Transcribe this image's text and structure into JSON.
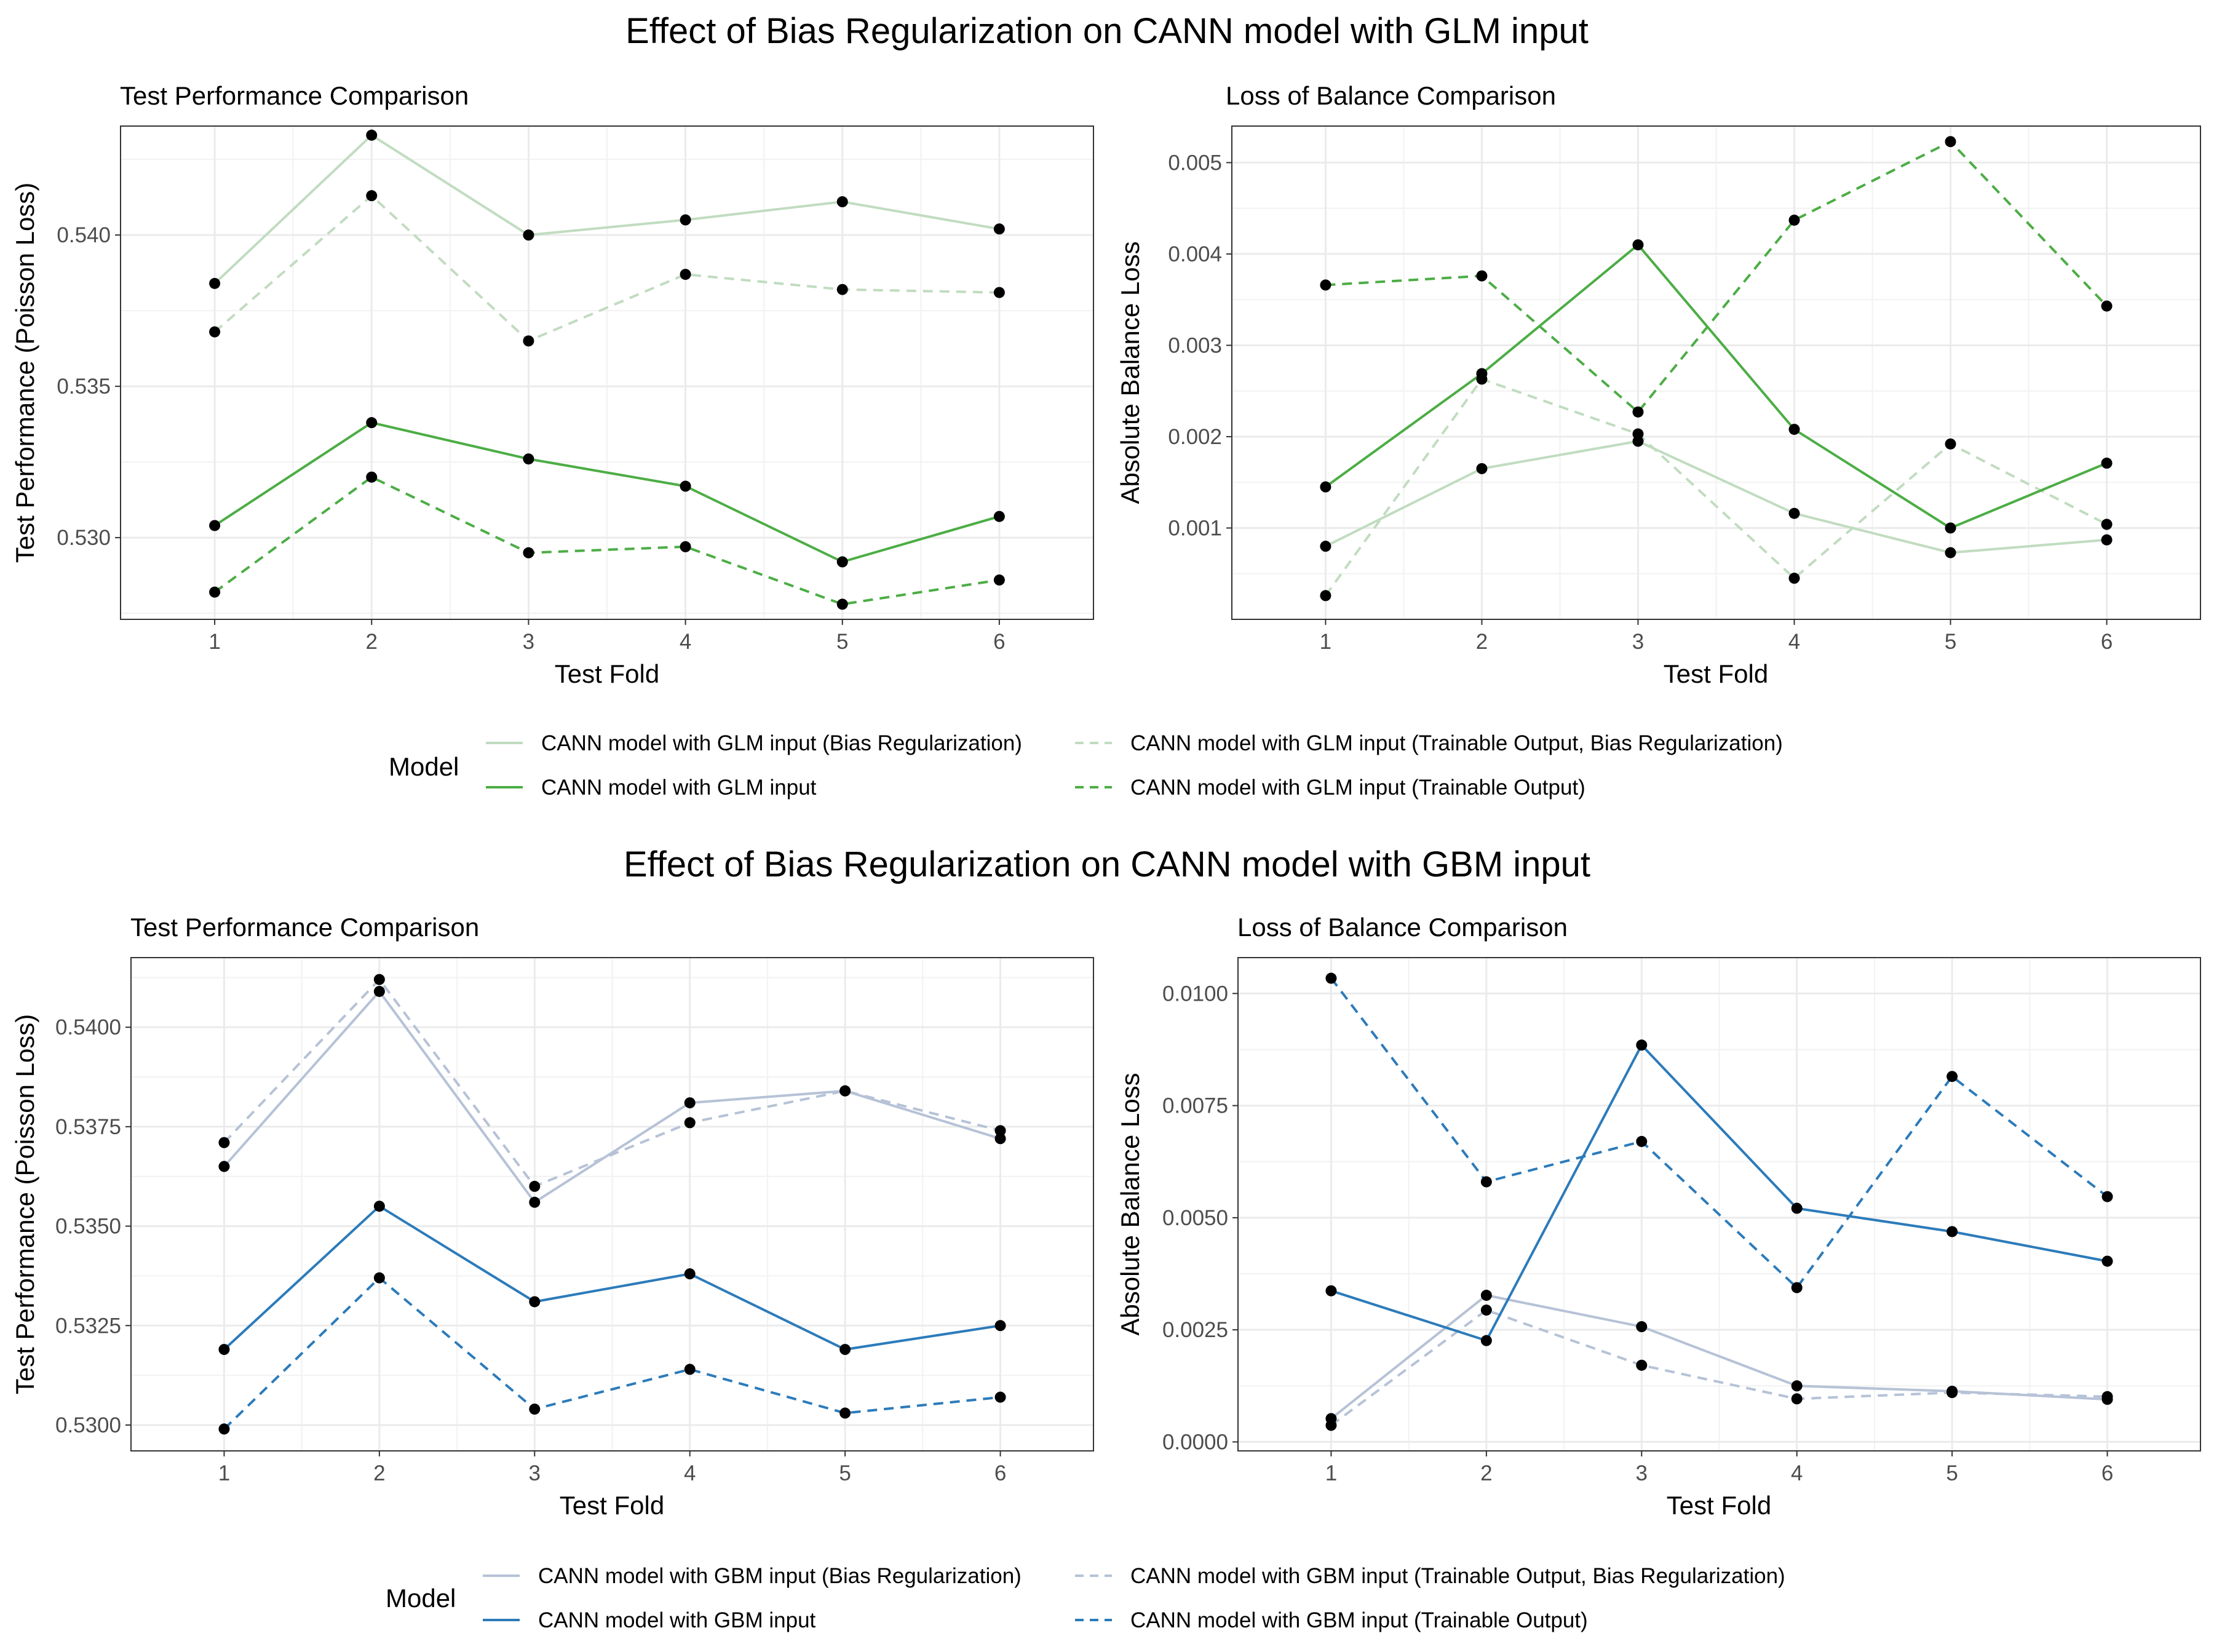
{
  "figure": {
    "top_title": "Effect of Bias Regularization on CANN model with GLM input",
    "bottom_title": "Effect of Bias Regularization on CANN model with GBM input"
  },
  "legends": [
    {
      "title": "Model",
      "items": [
        {
          "label": "CANN model with GLM input (Bias Regularization)",
          "color": "#c1dcc0",
          "dash": "solid"
        },
        {
          "label": "CANN model with GLM input (Trainable Output, Bias Regularization)",
          "color": "#c1dcc0",
          "dash": "dashed"
        },
        {
          "label": "CANN model with GLM input",
          "color": "#4cad45",
          "dash": "solid"
        },
        {
          "label": "CANN model with GLM input (Trainable Output)",
          "color": "#4cad45",
          "dash": "dashed"
        }
      ]
    },
    {
      "title": "Model",
      "items": [
        {
          "label": "CANN model with GBM input (Bias Regularization)",
          "color": "#b6c2d6",
          "dash": "solid"
        },
        {
          "label": "CANN model with GBM input (Trainable Output, Bias Regularization)",
          "color": "#b6c2d6",
          "dash": "dashed"
        },
        {
          "label": "CANN model with GBM input",
          "color": "#2c7bba",
          "dash": "solid"
        },
        {
          "label": "CANN model with GBM input (Trainable Output)",
          "color": "#2c7bba",
          "dash": "dashed"
        }
      ]
    }
  ],
  "chart_data": [
    {
      "type": "line",
      "title": "Test Performance Comparison",
      "xlabel": "Test Fold",
      "ylabel": "Test Performance (Poisson Loss)",
      "x": [
        1,
        2,
        3,
        4,
        5,
        6
      ],
      "xlim": [
        0.4,
        6.6
      ],
      "ylim": [
        0.5273,
        0.5436
      ],
      "yticks": [
        0.53,
        0.535,
        0.54
      ],
      "ytick_labels": [
        "0.530",
        "0.535",
        "0.540"
      ],
      "grid": true,
      "series": [
        {
          "name": "CANN model with GLM input (Bias Regularization)",
          "color": "#c1dcc0",
          "dash": "solid",
          "values": [
            0.5384,
            0.5433,
            0.54,
            0.5405,
            0.5411,
            0.5402
          ]
        },
        {
          "name": "CANN model with GLM input (Trainable Output, Bias Regularization)",
          "color": "#c1dcc0",
          "dash": "dashed",
          "values": [
            0.5368,
            0.5413,
            0.5365,
            0.5387,
            0.5382,
            0.5381
          ]
        },
        {
          "name": "CANN model with GLM input",
          "color": "#4cad45",
          "dash": "solid",
          "values": [
            0.5304,
            0.5338,
            0.5326,
            0.5317,
            0.5292,
            0.5307
          ]
        },
        {
          "name": "CANN model with GLM input (Trainable Output)",
          "color": "#4cad45",
          "dash": "dashed",
          "values": [
            0.5282,
            0.532,
            0.5295,
            0.5297,
            0.5278,
            0.5286
          ]
        }
      ]
    },
    {
      "type": "line",
      "title": "Loss of Balance Comparison",
      "xlabel": "Test Fold",
      "ylabel": "Absolute Balance Loss",
      "x": [
        1,
        2,
        3,
        4,
        5,
        6
      ],
      "xlim": [
        0.4,
        6.6
      ],
      "ylim": [
        0.0,
        0.0054
      ],
      "yticks": [
        0.001,
        0.002,
        0.003,
        0.004,
        0.005
      ],
      "ytick_labels": [
        "0.001",
        "0.002",
        "0.003",
        "0.004",
        "0.005"
      ],
      "grid": true,
      "series": [
        {
          "name": "CANN model with GLM input (Bias Regularization)",
          "color": "#c1dcc0",
          "dash": "solid",
          "values": [
            0.0008,
            0.00165,
            0.00195,
            0.00116,
            0.00073,
            0.00087
          ]
        },
        {
          "name": "CANN model with GLM input (Trainable Output, Bias Regularization)",
          "color": "#c1dcc0",
          "dash": "dashed",
          "values": [
            0.00026,
            0.00263,
            0.00203,
            0.00045,
            0.00192,
            0.00104
          ]
        },
        {
          "name": "CANN model with GLM input",
          "color": "#4cad45",
          "dash": "solid",
          "values": [
            0.00145,
            0.00269,
            0.0041,
            0.00208,
            0.001,
            0.00171
          ]
        },
        {
          "name": "CANN model with GLM input (Trainable Output)",
          "color": "#4cad45",
          "dash": "dashed",
          "values": [
            0.00366,
            0.00376,
            0.00227,
            0.00437,
            0.00523,
            0.00343
          ]
        }
      ]
    },
    {
      "type": "line",
      "title": "Test Performance Comparison",
      "xlabel": "Test Fold",
      "ylabel": "Test Performance (Poisson Loss)",
      "x": [
        1,
        2,
        3,
        4,
        5,
        6
      ],
      "xlim": [
        0.4,
        6.6
      ],
      "ylim": [
        0.52935,
        0.54175
      ],
      "yticks": [
        0.53,
        0.5325,
        0.535,
        0.5375,
        0.54
      ],
      "ytick_labels": [
        "0.5300",
        "0.5325",
        "0.5350",
        "0.5375",
        "0.5400"
      ],
      "grid": true,
      "series": [
        {
          "name": "CANN model with GBM input (Bias Regularization)",
          "color": "#b6c2d6",
          "dash": "solid",
          "values": [
            0.5365,
            0.5409,
            0.5356,
            0.5381,
            0.5384,
            0.5372
          ]
        },
        {
          "name": "CANN model with GBM input (Trainable Output, Bias Regularization)",
          "color": "#b6c2d6",
          "dash": "dashed",
          "values": [
            0.5371,
            0.5412,
            0.536,
            0.5376,
            0.5384,
            0.5374
          ]
        },
        {
          "name": "CANN model with GBM input",
          "color": "#2c7bba",
          "dash": "solid",
          "values": [
            0.5319,
            0.5355,
            0.5331,
            0.5338,
            0.5319,
            0.5325
          ]
        },
        {
          "name": "CANN model with GBM input (Trainable Output)",
          "color": "#2c7bba",
          "dash": "dashed",
          "values": [
            0.5299,
            0.5337,
            0.5304,
            0.5314,
            0.5303,
            0.5307
          ]
        }
      ]
    },
    {
      "type": "line",
      "title": "Loss of Balance Comparison",
      "xlabel": "Test Fold",
      "ylabel": "Absolute Balance Loss",
      "x": [
        1,
        2,
        3,
        4,
        5,
        6
      ],
      "xlim": [
        0.4,
        6.6
      ],
      "ylim": [
        -0.0002,
        0.0108
      ],
      "yticks": [
        0.0,
        0.0025,
        0.005,
        0.0075,
        0.01
      ],
      "ytick_labels": [
        "0.0000",
        "0.0025",
        "0.0050",
        "0.0075",
        "0.0100"
      ],
      "grid": true,
      "series": [
        {
          "name": "CANN model with GBM input (Bias Regularization)",
          "color": "#b6c2d6",
          "dash": "solid",
          "values": [
            0.00052,
            0.00327,
            0.00257,
            0.00125,
            0.00113,
            0.00095
          ]
        },
        {
          "name": "CANN model with GBM input (Trainable Output, Bias Regularization)",
          "color": "#b6c2d6",
          "dash": "dashed",
          "values": [
            0.00037,
            0.00294,
            0.00171,
            0.00096,
            0.0011,
            0.00101
          ]
        },
        {
          "name": "CANN model with GBM input",
          "color": "#2c7bba",
          "dash": "solid",
          "values": [
            0.00337,
            0.00226,
            0.00885,
            0.00521,
            0.00469,
            0.00403
          ]
        },
        {
          "name": "CANN model with GBM input (Trainable Output)",
          "color": "#2c7bba",
          "dash": "dashed",
          "values": [
            0.01034,
            0.0058,
            0.0067,
            0.00344,
            0.00815,
            0.00547
          ]
        }
      ]
    }
  ]
}
